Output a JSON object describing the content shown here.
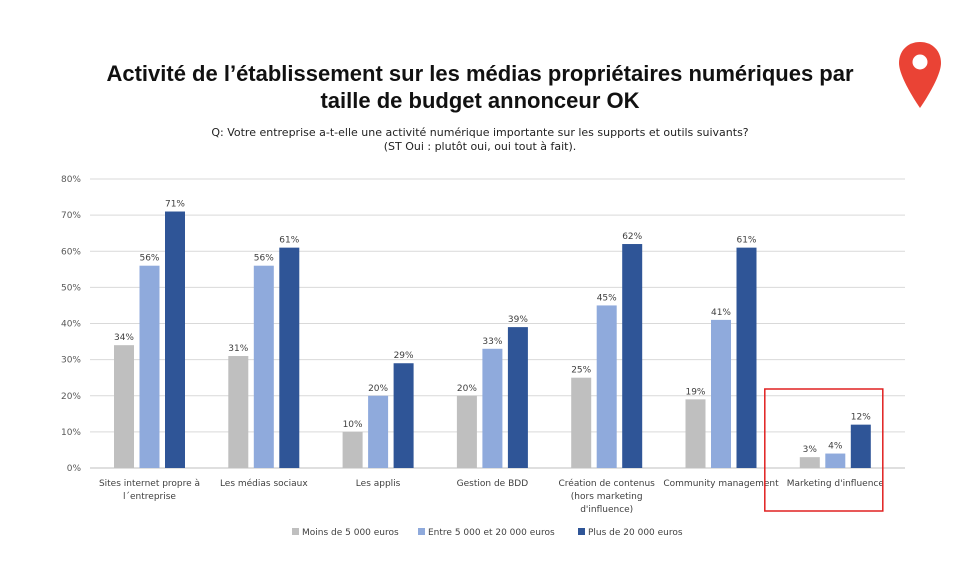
{
  "title": "Activité de l’établissement sur les médias propriétaires numériques par taille de budget annonceur OK",
  "subtitle_line1": "Q: Votre entreprise a-t-elle une activité numérique importante sur les supports et outils suivants?",
  "subtitle_line2": "(ST Oui : plutôt oui, oui tout à fait).",
  "icon": "map-pin-icon",
  "colors": {
    "series1": "#bfbfbf",
    "series2": "#8faadc",
    "series3": "#2f5597",
    "highlight": "#e02020",
    "pin": "#ea4335",
    "grid": "#d9d9d9"
  },
  "chart_data": {
    "type": "bar",
    "ylim": [
      0,
      80
    ],
    "yticks": [
      "0%",
      "10%",
      "20%",
      "30%",
      "40%",
      "50%",
      "60%",
      "70%",
      "80%"
    ],
    "grid": true,
    "legend_position": "bottom",
    "categories": [
      "Sites internet propre à l´entreprise",
      "Les médias sociaux",
      "Les applis",
      "Gestion de BDD",
      "Création de contenus (hors marketing d'influence)",
      "Community management",
      "Marketing d'influence"
    ],
    "category_lines": [
      [
        "Sites internet propre à",
        "l´entreprise"
      ],
      [
        "Les médias sociaux"
      ],
      [
        "Les applis"
      ],
      [
        "Gestion de BDD"
      ],
      [
        "Création de contenus",
        "(hors marketing",
        "d'influence)"
      ],
      [
        "Community management"
      ],
      [
        "Marketing d'influence"
      ]
    ],
    "series": [
      {
        "name": "Moins de 5 000 euros",
        "values": [
          34,
          31,
          10,
          20,
          25,
          19,
          3
        ]
      },
      {
        "name": "Entre 5 000 et 20 000 euros",
        "values": [
          56,
          56,
          20,
          33,
          45,
          41,
          4
        ]
      },
      {
        "name": "Plus de 20 000 euros",
        "values": [
          71,
          61,
          29,
          39,
          62,
          61,
          12
        ]
      }
    ],
    "highlighted_category": "Marketing d'influence"
  }
}
